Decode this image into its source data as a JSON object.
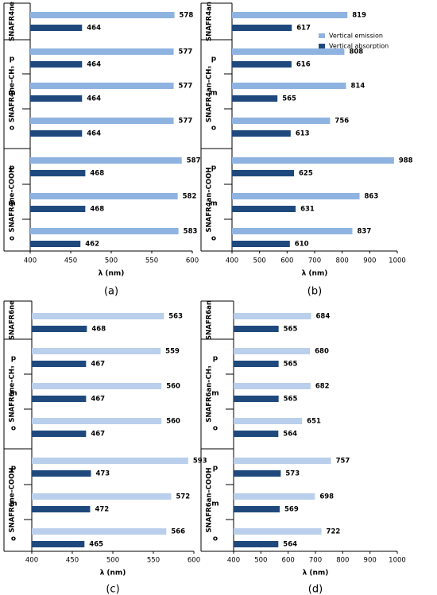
{
  "legend": {
    "emission_label": "Vertical emission",
    "absorption_label": "Vertical absorption",
    "emission_color": "#8fb3e0",
    "absorption_color": "#1f497d",
    "emission_color_light": "#b9cfeb"
  },
  "chart_data": [
    {
      "type": "bar",
      "panel_label": "(a)",
      "xlabel": "λ (nm)",
      "xlim": [
        400,
        600
      ],
      "xticks": [
        400,
        450,
        500,
        550,
        600
      ],
      "groups": [
        {
          "name": "SNAFR4ne",
          "rows": [
            ""
          ]
        },
        {
          "name": "SNAFR4ne–CH₃",
          "rows": [
            "p",
            "m",
            "o"
          ]
        },
        {
          "name": "SNAFR4ne–COOH",
          "rows": [
            "p",
            "m",
            "o"
          ]
        }
      ],
      "series": [
        {
          "name": "Vertical emission",
          "values": [
            578,
            577,
            577,
            577,
            587,
            582,
            583
          ]
        },
        {
          "name": "Vertical absorption",
          "values": [
            464,
            464,
            464,
            464,
            468,
            468,
            462
          ]
        }
      ]
    },
    {
      "type": "bar",
      "panel_label": "(b)",
      "xlabel": "λ (nm)",
      "xlim": [
        400,
        1000
      ],
      "xticks": [
        400,
        500,
        600,
        700,
        800,
        900,
        1000
      ],
      "groups": [
        {
          "name": "SNAFR4an",
          "rows": [
            ""
          ]
        },
        {
          "name": "SNAFR4an–CH₃",
          "rows": [
            "p",
            "m",
            "o"
          ]
        },
        {
          "name": "SNAFR4an–COOH",
          "rows": [
            "p",
            "m",
            "o"
          ]
        }
      ],
      "series": [
        {
          "name": "Vertical emission",
          "values": [
            819,
            808,
            814,
            756,
            988,
            863,
            837
          ]
        },
        {
          "name": "Vertical absorption",
          "values": [
            617,
            616,
            565,
            613,
            625,
            631,
            610
          ]
        }
      ]
    },
    {
      "type": "bar",
      "panel_label": "(c)",
      "xlabel": "λ (nm)",
      "xlim": [
        400,
        600
      ],
      "xticks": [
        400,
        450,
        500,
        550,
        600
      ],
      "groups": [
        {
          "name": "SNAFR6ne",
          "rows": [
            ""
          ]
        },
        {
          "name": "SNAFR6ne–CH₃",
          "rows": [
            "p",
            "m",
            "o"
          ]
        },
        {
          "name": "SNAFR6ne–COOH",
          "rows": [
            "p",
            "m",
            "o"
          ]
        }
      ],
      "series": [
        {
          "name": "Vertical emission",
          "values": [
            563,
            559,
            560,
            560,
            593,
            572,
            566
          ]
        },
        {
          "name": "Vertical absorption",
          "values": [
            468,
            467,
            467,
            467,
            473,
            472,
            465
          ]
        }
      ]
    },
    {
      "type": "bar",
      "panel_label": "(d)",
      "xlabel": "λ (nm)",
      "xlim": [
        400,
        1000
      ],
      "xticks": [
        400,
        500,
        600,
        700,
        800,
        900,
        1000
      ],
      "groups": [
        {
          "name": "SNAFR6an",
          "rows": [
            ""
          ]
        },
        {
          "name": "SNAFR6an–CH₃",
          "rows": [
            "p",
            "m",
            "o"
          ]
        },
        {
          "name": "SNAFR6an–COOH",
          "rows": [
            "p",
            "m",
            "o"
          ]
        }
      ],
      "series": [
        {
          "name": "Vertical emission",
          "values": [
            684,
            680,
            682,
            651,
            757,
            698,
            722
          ]
        },
        {
          "name": "Vertical absorption",
          "values": [
            565,
            565,
            565,
            564,
            573,
            569,
            564
          ]
        }
      ]
    }
  ]
}
